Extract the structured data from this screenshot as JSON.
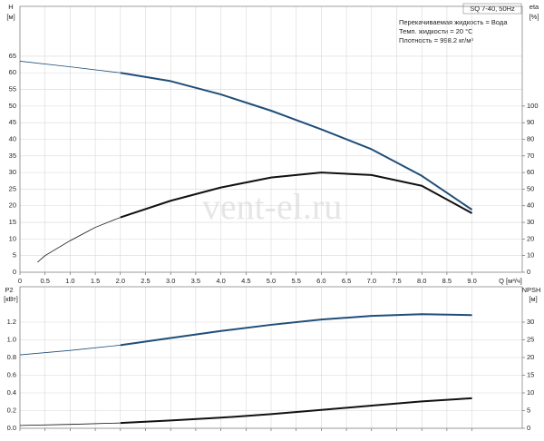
{
  "chart_data": [
    {
      "type": "line",
      "y_label": "H",
      "y_unit": "[м]",
      "y2_label": "eta",
      "y2_unit": "[%]",
      "x_label": "Q [м³/ч]",
      "box_title": "SQ 7-40, 50Hz",
      "annotations": [
        "Перекачиваемая жидкость = Вода",
        "Темп. жидкости = 20 °C",
        "Плотность = 998.2 кг/м³"
      ],
      "watermark": "vent-el.ru",
      "xlim": [
        0,
        10
      ],
      "xticks": [
        0,
        0.5,
        {
          "value": 1,
          "label": "1.0"
        },
        1.5,
        {
          "value": 2,
          "label": "2.0"
        },
        2.5,
        {
          "value": 3,
          "label": "3.0"
        },
        3.5,
        {
          "value": 4,
          "label": "4.0"
        },
        4.5,
        {
          "value": 5,
          "label": "5.0"
        },
        5.5,
        {
          "value": 6,
          "label": "6.0"
        },
        6.5,
        {
          "value": 7,
          "label": "7.0"
        },
        7.5,
        {
          "value": 8,
          "label": "8.0"
        },
        8.5,
        {
          "value": 9,
          "label": "9.0"
        }
      ],
      "ylim": [
        0,
        80
      ],
      "yticks": [
        0,
        5,
        10,
        15,
        20,
        25,
        30,
        35,
        40,
        45,
        50,
        55,
        60,
        65
      ],
      "y2lim": [
        0,
        160
      ],
      "y2ticks": [
        0,
        10,
        20,
        30,
        40,
        50,
        60,
        70,
        80,
        90,
        100
      ],
      "grid": true,
      "series": [
        {
          "color": "#1f4e79",
          "line_width": 0.8,
          "x": [
            0,
            1,
            2
          ],
          "values": [
            63.5,
            61.8,
            60
          ]
        },
        {
          "color": "#1f4e79",
          "line_width": 2,
          "x": [
            2,
            3,
            4,
            5,
            6,
            7,
            8,
            9
          ],
          "values": [
            60,
            57.5,
            53.5,
            48.6,
            43,
            37,
            29,
            18.8
          ]
        },
        {
          "color": "#111111",
          "line_width": 0.8,
          "axis": "y2",
          "x": [
            0.35,
            0.5,
            1,
            1.5,
            2
          ],
          "values": [
            6,
            10,
            19,
            27,
            33
          ]
        },
        {
          "color": "#111111",
          "line_width": 2,
          "axis": "y2",
          "x": [
            2,
            3,
            4,
            5,
            6,
            7,
            8,
            9
          ],
          "values": [
            33,
            43,
            51,
            57,
            60,
            58.5,
            52,
            35.5
          ]
        }
      ]
    },
    {
      "type": "line",
      "y_label": "P2",
      "y_unit": "[кВт]",
      "y2_label": "NPSH",
      "y2_unit": "[м]",
      "xlim": [
        0,
        10
      ],
      "ylim": [
        0,
        1.6
      ],
      "yticks": [
        {
          "value": 0,
          "label": "0.0"
        },
        0.2,
        0.4,
        0.6,
        0.8,
        {
          "value": 1,
          "label": "1.0"
        },
        1.2
      ],
      "y2lim": [
        0,
        40
      ],
      "y2ticks": [
        0,
        5,
        10,
        15,
        20,
        25,
        30
      ],
      "grid": true,
      "series": [
        {
          "color": "#1f4e79",
          "line_width": 0.8,
          "x": [
            0,
            1,
            2
          ],
          "values": [
            0.83,
            0.88,
            0.94
          ]
        },
        {
          "color": "#1f4e79",
          "line_width": 2,
          "x": [
            2,
            3,
            4,
            5,
            6,
            7,
            8,
            9
          ],
          "values": [
            0.94,
            1.02,
            1.1,
            1.17,
            1.23,
            1.27,
            1.29,
            1.28
          ]
        },
        {
          "color": "#111111",
          "line_width": 0.8,
          "axis": "y2",
          "x": [
            0,
            1,
            2
          ],
          "values": [
            0.8,
            1.1,
            1.5
          ]
        },
        {
          "color": "#111111",
          "line_width": 2,
          "axis": "y2",
          "x": [
            2,
            3,
            4,
            5,
            6,
            7,
            8,
            9
          ],
          "values": [
            1.5,
            2.2,
            3,
            4,
            5.2,
            6.4,
            7.6,
            8.5
          ]
        }
      ]
    }
  ]
}
